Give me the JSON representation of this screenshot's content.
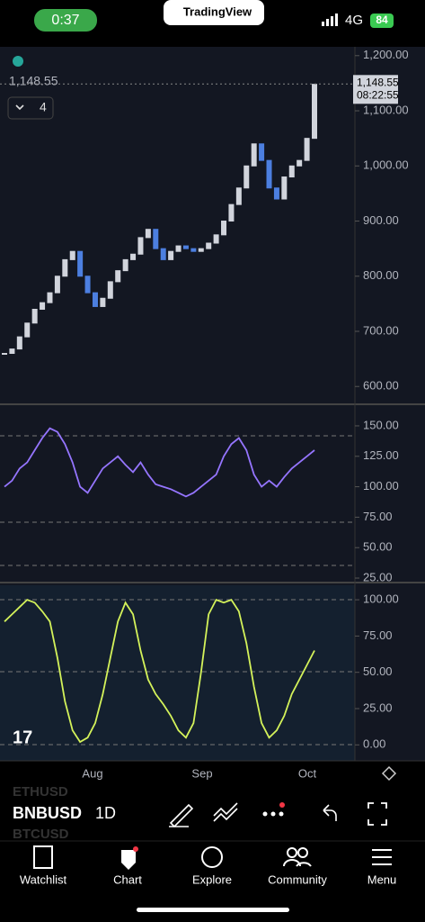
{
  "status": {
    "time": "0:37",
    "app": "TradingView",
    "network": "4G",
    "battery": "84"
  },
  "chart": {
    "price_label": "1,148.55",
    "indicator_count": "4",
    "last_price": {
      "value": 1148.55,
      "label": "1,148.55"
    },
    "countdown": "08:22:55",
    "price_axis": {
      "ylim": [
        571,
        1216
      ],
      "ticks": [
        {
          "value": 1200,
          "label": "1,200.00"
        },
        {
          "value": 1100,
          "label": "1,100.00"
        },
        {
          "value": 1000,
          "label": "1,000.00"
        },
        {
          "value": 900,
          "label": "900.00"
        },
        {
          "value": 800,
          "label": "800.00"
        },
        {
          "value": 700,
          "label": "700.00"
        },
        {
          "value": 600,
          "label": "600.00"
        }
      ]
    },
    "closes": [
      660,
      668,
      690,
      715,
      740,
      752,
      770,
      800,
      830,
      845,
      800,
      770,
      745,
      760,
      790,
      810,
      830,
      840,
      870,
      885,
      850,
      830,
      845,
      855,
      850,
      845,
      850,
      860,
      875,
      900,
      930,
      960,
      1000,
      1040,
      1010,
      960,
      940,
      980,
      1000,
      1010,
      1050,
      1148
    ],
    "rsi_axis": {
      "ylim": [
        22.8,
        165.5
      ],
      "ticks": [
        {
          "value": 150,
          "label": "150.00"
        },
        {
          "value": 125,
          "label": "125.00"
        },
        {
          "value": 100,
          "label": "100.00"
        },
        {
          "value": 75,
          "label": "75.00"
        },
        {
          "value": 50,
          "label": "50.00"
        },
        {
          "value": 25,
          "label": "25.00"
        }
      ]
    },
    "rsi": [
      100,
      105,
      115,
      120,
      130,
      140,
      148,
      145,
      135,
      120,
      100,
      95,
      105,
      115,
      120,
      125,
      118,
      112,
      120,
      110,
      102,
      100,
      98,
      95,
      92,
      95,
      100,
      105,
      110,
      125,
      135,
      140,
      130,
      110,
      100,
      105,
      100,
      108,
      115,
      120,
      125,
      130
    ],
    "stoch_axis": {
      "ylim": [
        -11,
        110
      ],
      "ticks": [
        {
          "value": 100,
          "label": "100.00"
        },
        {
          "value": 75,
          "label": "75.00"
        },
        {
          "value": 50,
          "label": "50.00"
        },
        {
          "value": 25,
          "label": "25.00"
        },
        {
          "value": 0,
          "label": "0.00"
        }
      ]
    },
    "stoch": [
      85,
      90,
      95,
      100,
      98,
      92,
      85,
      60,
      30,
      10,
      2,
      5,
      15,
      35,
      60,
      85,
      98,
      90,
      65,
      45,
      35,
      28,
      20,
      10,
      5,
      15,
      50,
      90,
      100,
      98,
      100,
      92,
      70,
      40,
      15,
      5,
      10,
      20,
      35,
      45,
      55,
      65
    ],
    "months": [
      "Aug",
      "Sep",
      "Oct"
    ]
  },
  "toolbar": {
    "symbol": "BNBUSD",
    "interval": "1D",
    "watch_above": "ETHUSD",
    "watch_below": "BTCUSD"
  },
  "nav": [
    "Watchlist",
    "Chart",
    "Explore",
    "Community",
    "Menu"
  ]
}
